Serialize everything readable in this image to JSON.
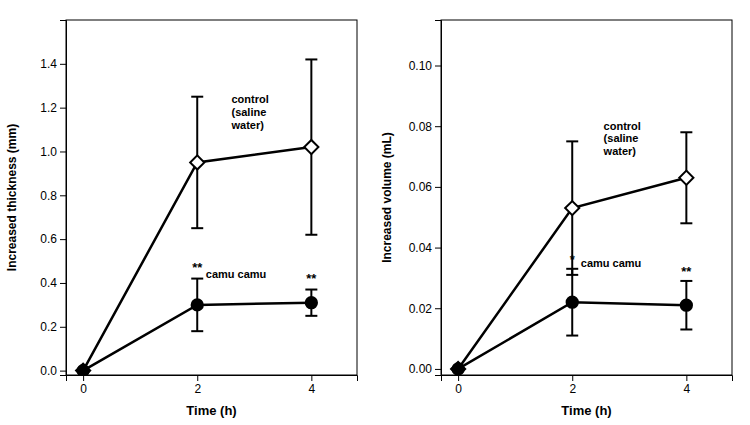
{
  "chart_data": [
    {
      "type": "line",
      "xlabel": "Time (h)",
      "ylabel": "Increased thickness (mm)",
      "x": [
        0,
        2,
        4
      ],
      "xlim": [
        -0.3,
        4.8
      ],
      "ylim": [
        -0.02,
        1.6
      ],
      "xticks": [
        0,
        2,
        4
      ],
      "yticks": [
        {
          "value": 0,
          "label": "0.0"
        },
        0.2,
        0.4,
        0.6,
        0.8,
        {
          "value": 1.0,
          "label": "1.0"
        },
        1.2,
        1.4
      ],
      "series": [
        {
          "color": "#000000",
          "marker": "diamond",
          "line_style": "solid",
          "values": [
            0.0,
            0.95,
            1.02
          ],
          "errors": [
            0.0,
            0.3,
            0.4
          ]
        },
        {
          "color": "#000000",
          "marker": "circle",
          "line_style": "solid",
          "values": [
            0.0,
            0.3,
            0.31
          ],
          "errors": [
            0.0,
            0.12,
            0.06
          ]
        }
      ],
      "annotations": [
        {
          "text": "**",
          "x": 2.0,
          "y": 0.44
        },
        {
          "text": "**",
          "x": 4.0,
          "y": 0.39
        },
        {
          "text": "control\n(saline\nwater)",
          "x": 2.6,
          "y": 1.18
        },
        {
          "text": "camu camu",
          "x": 2.15,
          "y": 0.44
        }
      ]
    },
    {
      "type": "line",
      "xlabel": "Time (h)",
      "ylabel": "Increased volume (mL)",
      "x": [
        0,
        2,
        4
      ],
      "xlim": [
        -0.3,
        4.8
      ],
      "ylim": [
        -0.002,
        0.115
      ],
      "xticks": [
        0,
        2,
        4
      ],
      "yticks": [
        {
          "value": 0.0,
          "label": "0.00"
        },
        {
          "value": 0.02,
          "label": "0.02"
        },
        {
          "value": 0.04,
          "label": "0.04"
        },
        {
          "value": 0.06,
          "label": "0.06"
        },
        {
          "value": 0.08,
          "label": "0.08"
        },
        {
          "value": 0.1,
          "label": "0.10"
        }
      ],
      "series": [
        {
          "color": "#000000",
          "marker": "diamond",
          "line_style": "solid",
          "values": [
            0.0,
            0.053,
            0.063
          ],
          "errors": [
            0.0,
            0.022,
            0.015
          ]
        },
        {
          "color": "#000000",
          "marker": "circle",
          "line_style": "solid",
          "values": [
            0.0,
            0.022,
            0.021
          ],
          "errors": [
            0.0,
            0.011,
            0.008
          ]
        }
      ],
      "annotations": [
        {
          "text": "*",
          "x": 2.0,
          "y": 0.034
        },
        {
          "text": "**",
          "x": 4.0,
          "y": 0.03
        },
        {
          "text": "control\n(saline\nwater)",
          "x": 2.55,
          "y": 0.076
        },
        {
          "text": "camu camu",
          "x": 2.15,
          "y": 0.035
        }
      ]
    }
  ]
}
